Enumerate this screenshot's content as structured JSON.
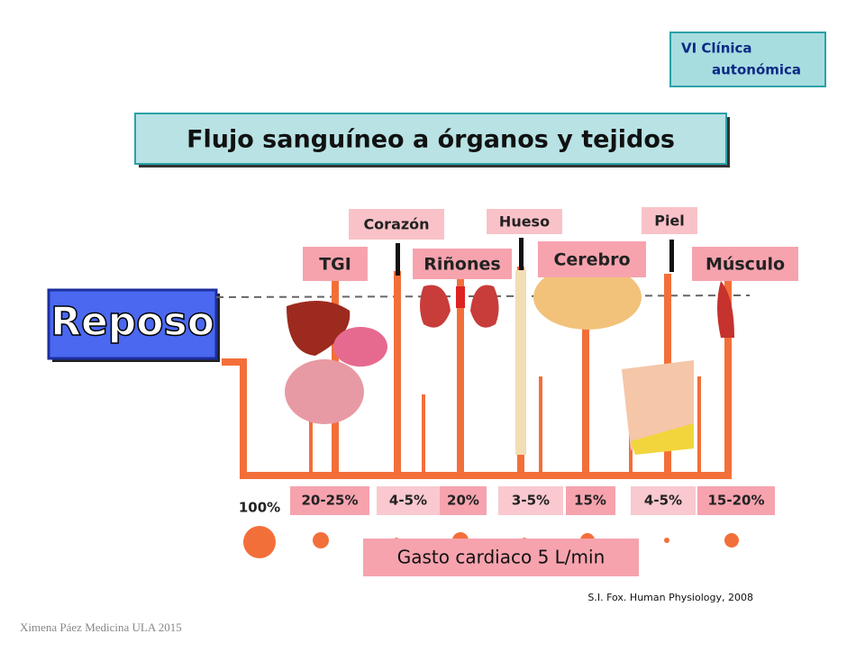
{
  "header": {
    "tag": [
      "VI Clínica",
      "autonómica"
    ],
    "title": "Flujo sanguíneo a órganos y tejidos"
  },
  "state": "Reposo",
  "organs": [
    "TGI",
    "Corazón",
    "Riñones",
    "Hueso",
    "Cerebro",
    "Piel",
    "Músculo"
  ],
  "flows": [
    "100%",
    "20-25%",
    "4-5%",
    "20%",
    "3-5%",
    "15%",
    "4-5%",
    "15-20%"
  ],
  "cardiac_output": "Gasto cardiaco 5 L/min",
  "citation": "S.I. Fox. Human Physiology, 2008",
  "footer": "Ximena Páez Medicina ULA 2015"
}
